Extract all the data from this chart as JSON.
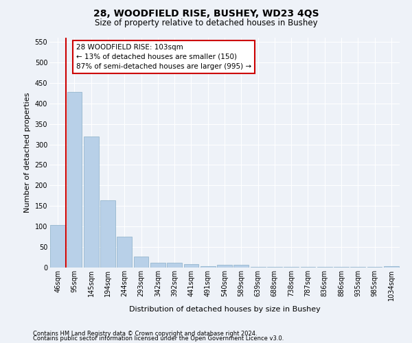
{
  "title": "28, WOODFIELD RISE, BUSHEY, WD23 4QS",
  "subtitle": "Size of property relative to detached houses in Bushey",
  "xlabel": "Distribution of detached houses by size in Bushey",
  "ylabel": "Number of detached properties",
  "categories": [
    "46sqm",
    "95sqm",
    "145sqm",
    "194sqm",
    "244sqm",
    "293sqm",
    "342sqm",
    "392sqm",
    "441sqm",
    "491sqm",
    "540sqm",
    "589sqm",
    "639sqm",
    "688sqm",
    "738sqm",
    "787sqm",
    "836sqm",
    "886sqm",
    "935sqm",
    "985sqm",
    "1034sqm"
  ],
  "values": [
    103,
    428,
    320,
    163,
    75,
    26,
    12,
    12,
    8,
    3,
    6,
    6,
    1,
    1,
    1,
    1,
    1,
    1,
    1,
    1,
    4
  ],
  "bar_color": "#b8d0e8",
  "bar_edge_color": "#8aafc8",
  "vline_x": 0.5,
  "vline_color": "#cc0000",
  "annotation_text": "28 WOODFIELD RISE: 103sqm\n← 13% of detached houses are smaller (150)\n87% of semi-detached houses are larger (995) →",
  "annotation_box_color": "white",
  "annotation_box_edge_color": "#cc0000",
  "ylim": [
    0,
    560
  ],
  "yticks": [
    0,
    50,
    100,
    150,
    200,
    250,
    300,
    350,
    400,
    450,
    500,
    550
  ],
  "footnote1": "Contains HM Land Registry data © Crown copyright and database right 2024.",
  "footnote2": "Contains public sector information licensed under the Open Government Licence v3.0.",
  "bg_color": "#eef2f8",
  "plot_bg_color": "#eef2f8",
  "grid_color": "#ffffff",
  "title_fontsize": 10,
  "subtitle_fontsize": 8.5,
  "tick_fontsize": 7,
  "label_fontsize": 8,
  "annotation_fontsize": 7.5
}
